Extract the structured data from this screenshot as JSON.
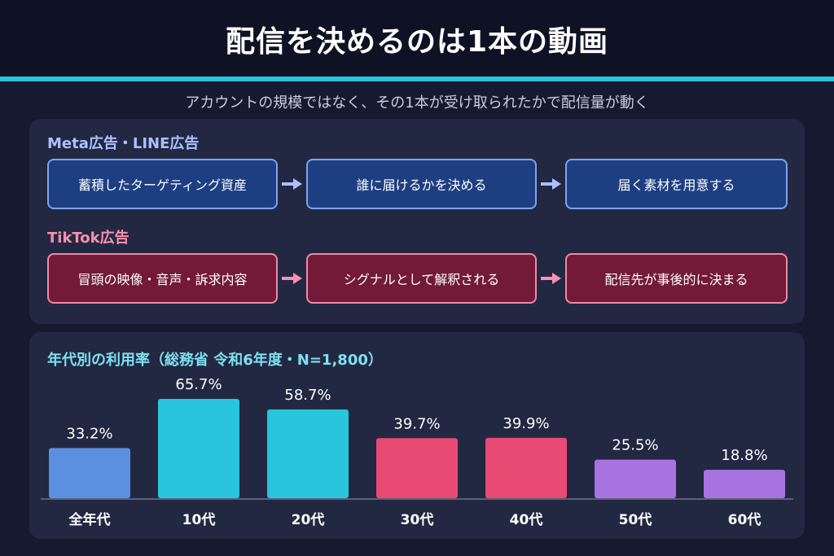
{
  "header": {
    "title": "配信を決めるのは1本の動画"
  },
  "subtitle": "アカウントの規模ではなく、その1本が受け取られたかで配信量が動く",
  "meta_flow": {
    "label": "Meta広告・LINE広告",
    "steps": [
      "蓄積したターゲティング資産",
      "誰に届けるかを決める",
      "届く素材を用意する"
    ]
  },
  "tiktok_flow": {
    "label": "TikTok広告",
    "steps": [
      "冒頭の映像・音声・訴求内容",
      "シグナルとして解釈される",
      "配信先が事後的に決まる"
    ]
  },
  "colors": {
    "accent": "#29c5dc",
    "blue_box": "#1d3f82",
    "red_box": "#731a38"
  },
  "chart_data": {
    "type": "bar",
    "title": "年代別の利用率（総務省 令和6年度・N=1,800）",
    "categories": [
      "全年代",
      "10代",
      "20代",
      "30代",
      "40代",
      "50代",
      "60代"
    ],
    "values": [
      33.2,
      65.7,
      58.7,
      39.7,
      39.9,
      25.5,
      18.8
    ],
    "value_labels": [
      "33.2%",
      "65.7%",
      "58.7%",
      "39.7%",
      "39.9%",
      "25.5%",
      "18.8%"
    ],
    "colors": [
      "#5b8fe0",
      "#29c5dc",
      "#29c5dc",
      "#e84a74",
      "#e84a74",
      "#a873e0",
      "#a873e0"
    ],
    "ylim": [
      0,
      70
    ],
    "grid": false,
    "legend": "none"
  }
}
